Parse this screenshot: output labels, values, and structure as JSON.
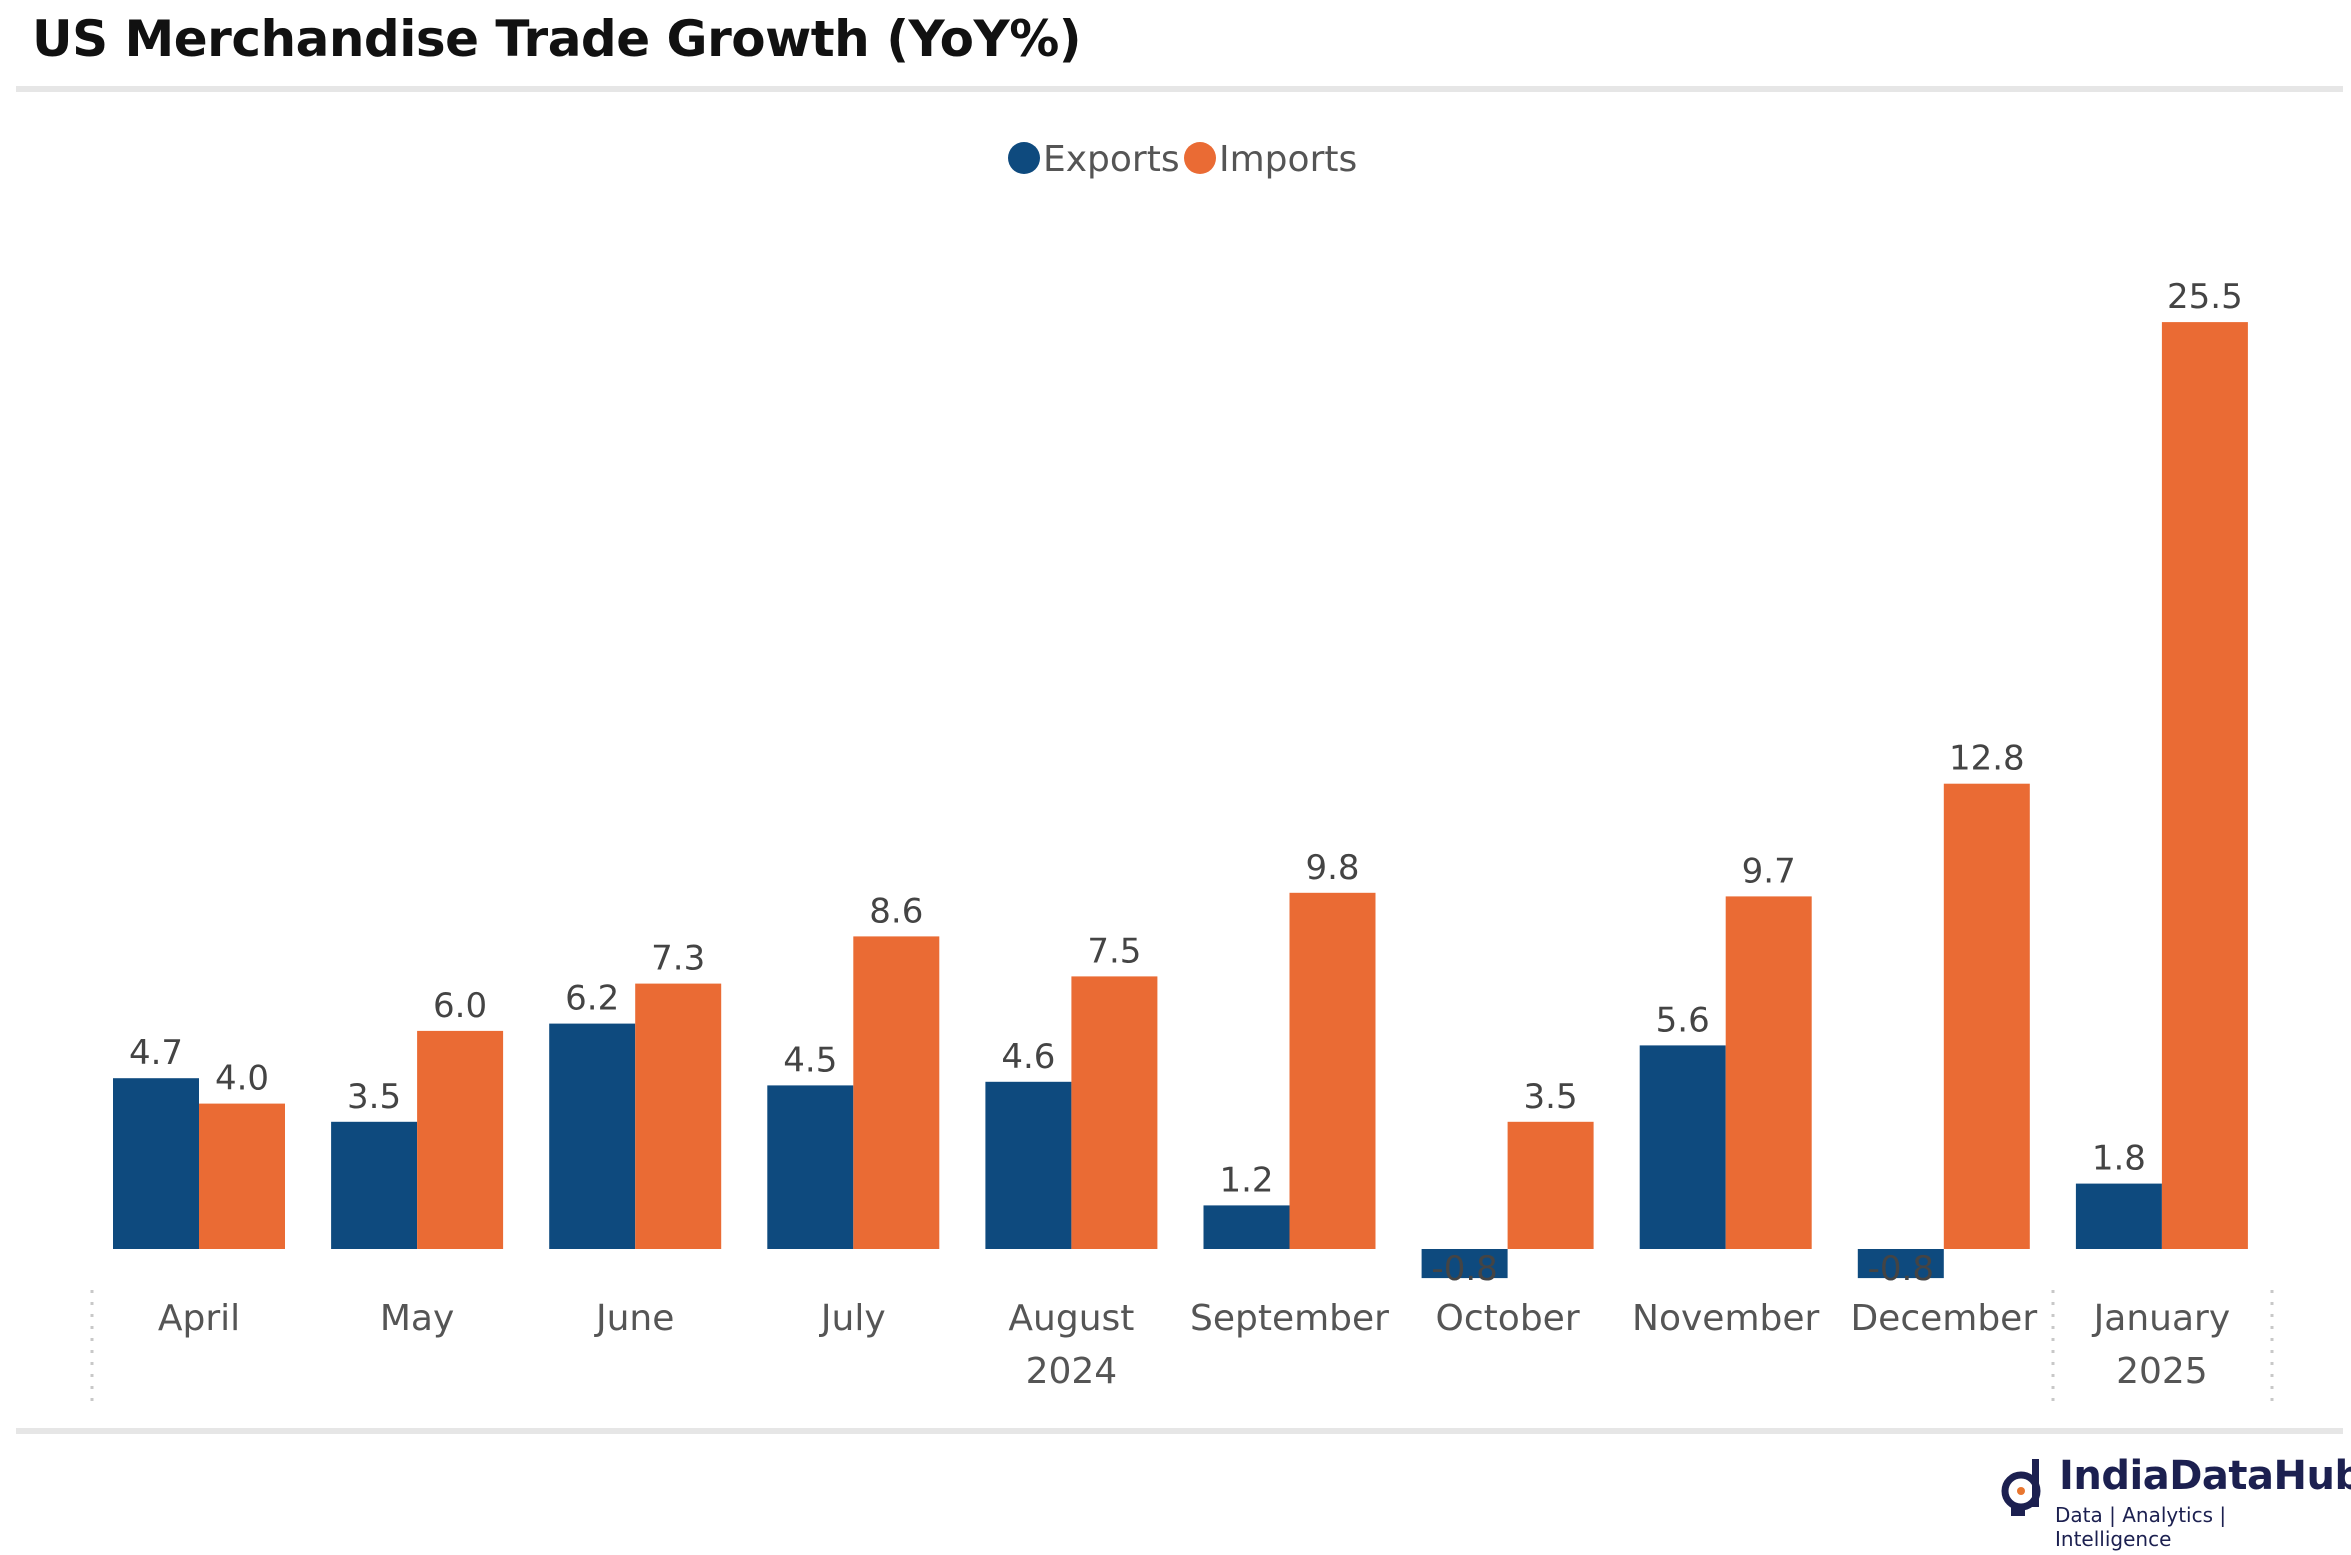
{
  "title": "US Merchandise Trade Growth (YoY%)",
  "logo": {
    "name": "IndiaDataHub",
    "tagline": "Data | Analytics | Intelligence"
  },
  "colors": {
    "exports": "#0e4a7e",
    "imports": "#ea6b34"
  },
  "chart_data": {
    "type": "bar",
    "categories": [
      "April",
      "May",
      "June",
      "July",
      "August",
      "September",
      "October",
      "November",
      "December",
      "January"
    ],
    "year_labels": [
      {
        "label": "2024",
        "category_index": 4
      },
      {
        "label": "2025",
        "category_index": 9
      }
    ],
    "series": [
      {
        "name": "Exports",
        "values": [
          4.7,
          3.5,
          6.2,
          4.5,
          4.6,
          1.2,
          -0.8,
          5.6,
          -0.8,
          1.8
        ]
      },
      {
        "name": "Imports",
        "values": [
          4.0,
          6.0,
          7.3,
          8.6,
          7.5,
          9.8,
          3.5,
          9.7,
          12.8,
          25.5
        ]
      }
    ],
    "title": "US Merchandise Trade Growth (YoY%)",
    "xlabel": "",
    "ylabel": "",
    "ylim": [
      -0.8,
      25.5
    ],
    "grid": false,
    "legend": "top-center",
    "data_labels": true
  }
}
